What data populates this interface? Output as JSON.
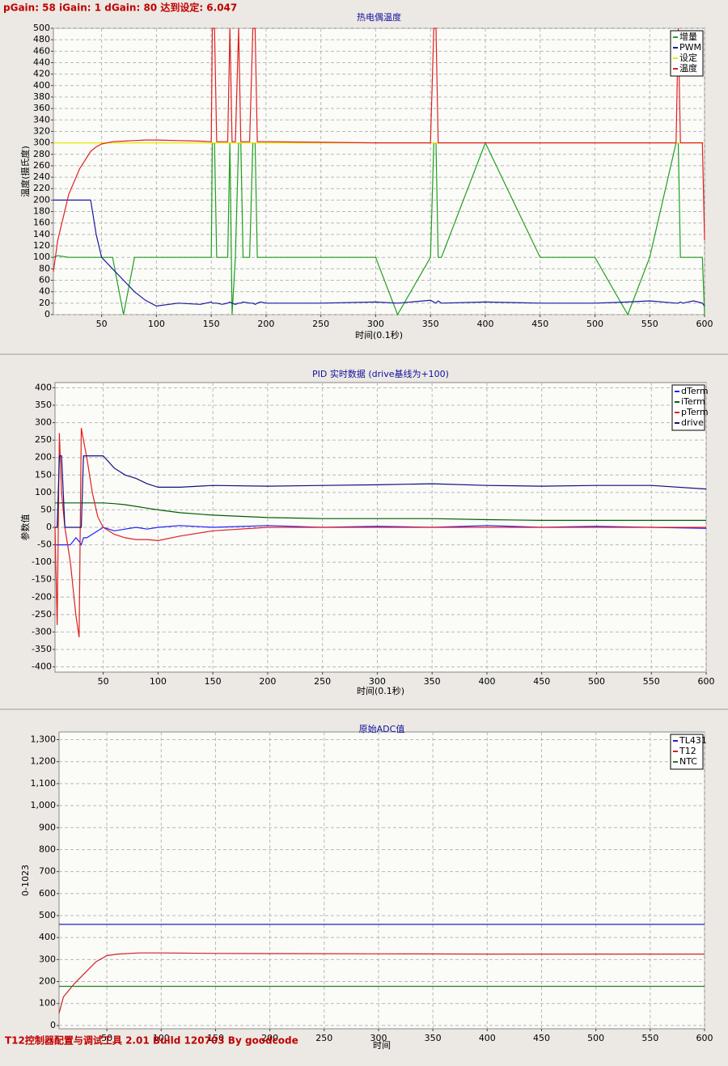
{
  "header": "pGain: 58 iGain: 1 dGain: 80 达到设定: 6.047",
  "footer": "T12控制器配置与调试工具 2.01 Build 120703 By goodcode",
  "chart_data": [
    {
      "type": "line",
      "title": "热电偶温度",
      "x_label": "时间(0.1秒)",
      "y_label": "温度(摄氏度)",
      "x": [
        6,
        10,
        20,
        30,
        40,
        45,
        50,
        60,
        70,
        80,
        90,
        100,
        120,
        140,
        150,
        151,
        153,
        155,
        160,
        165,
        167,
        169,
        172,
        175,
        177,
        179,
        185,
        188,
        190,
        192,
        195,
        200,
        250,
        300,
        320,
        350,
        353,
        355,
        357,
        360,
        400,
        450,
        500,
        530,
        550,
        574,
        576,
        578,
        580,
        590,
        598,
        600
      ],
      "series": [
        {
          "name": "增量",
          "color": "#20a020",
          "values": [
            100,
            103,
            100,
            100,
            100,
            100,
            100,
            100,
            0,
            100,
            100,
            100,
            100,
            100,
            100,
            300,
            300,
            100,
            100,
            100,
            300,
            0,
            100,
            300,
            300,
            100,
            100,
            300,
            300,
            100,
            100,
            100,
            100,
            100,
            0,
            100,
            300,
            300,
            100,
            100,
            300,
            100,
            100,
            0,
            100,
            300,
            300,
            100,
            100,
            100,
            100,
            0
          ]
        },
        {
          "name": "PWM",
          "color": "#1a1aa0",
          "values": [
            200,
            200,
            200,
            200,
            200,
            140,
            100,
            80,
            60,
            40,
            25,
            15,
            20,
            18,
            22,
            20,
            20,
            20,
            18,
            20,
            22,
            20,
            18,
            20,
            20,
            22,
            20,
            20,
            18,
            20,
            22,
            20,
            20,
            22,
            20,
            25,
            22,
            20,
            24,
            20,
            22,
            20,
            20,
            22,
            24,
            20,
            20,
            22,
            20,
            24,
            20,
            15
          ]
        },
        {
          "name": "设定",
          "color": "#e8e800",
          "values": [
            300,
            300,
            300,
            300,
            300,
            300,
            300,
            300,
            300,
            300,
            300,
            300,
            300,
            300,
            300,
            300,
            300,
            300,
            300,
            300,
            300,
            300,
            300,
            300,
            300,
            300,
            300,
            300,
            300,
            300,
            300,
            300,
            300,
            300,
            300,
            300,
            300,
            300,
            300,
            300,
            300,
            300,
            300,
            300,
            300,
            300,
            300,
            300,
            300,
            300,
            300,
            300
          ]
        },
        {
          "name": "温度",
          "color": "#e02020",
          "values": [
            75,
            130,
            210,
            255,
            285,
            293,
            298,
            302,
            303,
            304,
            305,
            305,
            304,
            303,
            302,
            500,
            500,
            302,
            302,
            302,
            500,
            302,
            302,
            500,
            302,
            302,
            302,
            500,
            500,
            302,
            302,
            302,
            301,
            300,
            300,
            300,
            500,
            500,
            300,
            300,
            300,
            300,
            300,
            300,
            300,
            300,
            500,
            300,
            300,
            300,
            300,
            130
          ]
        }
      ],
      "xlim": [
        6,
        600
      ],
      "ylim": [
        0,
        500
      ],
      "xticks": [
        50,
        100,
        150,
        200,
        250,
        300,
        350,
        400,
        450,
        500,
        550,
        600
      ],
      "yticks": [
        0,
        20,
        40,
        60,
        80,
        100,
        120,
        140,
        160,
        180,
        200,
        220,
        240,
        260,
        280,
        300,
        320,
        340,
        360,
        380,
        400,
        420,
        440,
        460,
        480,
        500
      ],
      "grid": true,
      "legend": "upper right"
    },
    {
      "type": "line",
      "title": "PID 实时数据 (drive基线为+100)",
      "x_label": "时间(0.1秒)",
      "y_label": "参数值",
      "x": [
        6,
        8,
        10,
        12,
        15,
        20,
        25,
        28,
        30,
        32,
        35,
        40,
        45,
        50,
        60,
        70,
        80,
        90,
        100,
        120,
        150,
        200,
        250,
        300,
        350,
        400,
        450,
        500,
        550,
        600
      ],
      "series": [
        {
          "name": "dTerm",
          "color": "#2020ff",
          "values": [
            -50,
            -50,
            -50,
            -50,
            -50,
            -50,
            -30,
            -40,
            -50,
            -30,
            -30,
            -20,
            -10,
            0,
            -10,
            -5,
            0,
            -5,
            0,
            5,
            0,
            5,
            0,
            3,
            0,
            5,
            0,
            3,
            0,
            -3
          ]
        },
        {
          "name": "iTerm",
          "color": "#006000",
          "values": [
            70,
            70,
            70,
            70,
            70,
            70,
            70,
            70,
            70,
            70,
            70,
            70,
            70,
            70,
            68,
            65,
            60,
            55,
            50,
            42,
            35,
            28,
            25,
            25,
            25,
            22,
            20,
            20,
            20,
            20
          ]
        },
        {
          "name": "pTerm",
          "color": "#e02020",
          "values": [
            0,
            -280,
            270,
            100,
            0,
            -100,
            -250,
            -315,
            285,
            250,
            200,
            100,
            30,
            0,
            -20,
            -30,
            -35,
            -35,
            -38,
            -25,
            -10,
            0,
            0,
            0,
            0,
            0,
            0,
            0,
            0,
            0
          ]
        },
        {
          "name": "drive",
          "color": "#101080",
          "values": [
            0,
            0,
            205,
            205,
            0,
            0,
            0,
            0,
            0,
            205,
            205,
            205,
            205,
            205,
            170,
            150,
            140,
            125,
            115,
            115,
            120,
            118,
            120,
            122,
            125,
            120,
            118,
            120,
            120,
            110
          ]
        }
      ],
      "xlim": [
        6,
        600
      ],
      "ylim": [
        -415,
        415
      ],
      "xticks": [
        50,
        100,
        150,
        200,
        250,
        300,
        350,
        400,
        450,
        500,
        550,
        600
      ],
      "yticks": [
        -400,
        -350,
        -300,
        -250,
        -200,
        -150,
        -100,
        -50,
        0,
        50,
        100,
        150,
        200,
        250,
        300,
        350,
        400
      ],
      "grid": true,
      "legend": "upper right"
    },
    {
      "type": "line",
      "title": "原始ADC值",
      "x_label": "时间",
      "y_label": "0-1023",
      "x": [
        6,
        10,
        20,
        30,
        40,
        50,
        60,
        80,
        100,
        150,
        200,
        300,
        400,
        500,
        600
      ],
      "series": [
        {
          "name": "TL431",
          "color": "#2020c0",
          "values": [
            460,
            460,
            460,
            460,
            460,
            460,
            460,
            460,
            460,
            460,
            460,
            460,
            460,
            460,
            460
          ]
        },
        {
          "name": "T12",
          "color": "#d02020",
          "values": [
            55,
            130,
            190,
            240,
            290,
            318,
            325,
            330,
            330,
            328,
            327,
            326,
            325,
            325,
            325
          ]
        },
        {
          "name": "NTC",
          "color": "#208020",
          "values": [
            178,
            178,
            178,
            178,
            178,
            178,
            178,
            178,
            178,
            178,
            178,
            178,
            178,
            178,
            178
          ]
        }
      ],
      "xlim": [
        6,
        600
      ],
      "ylim": [
        -15,
        1335
      ],
      "xticks": [
        50,
        100,
        150,
        200,
        250,
        300,
        350,
        400,
        450,
        500,
        550,
        600
      ],
      "yticks": [
        0,
        100,
        200,
        300,
        400,
        500,
        600,
        700,
        800,
        900,
        {
          "value": 1000,
          "label": "1,000"
        },
        {
          "value": 1100,
          "label": "1,100"
        },
        {
          "value": 1200,
          "label": "1,200"
        },
        {
          "value": 1300,
          "label": "1,300"
        }
      ],
      "grid": true,
      "legend": "upper right"
    }
  ]
}
